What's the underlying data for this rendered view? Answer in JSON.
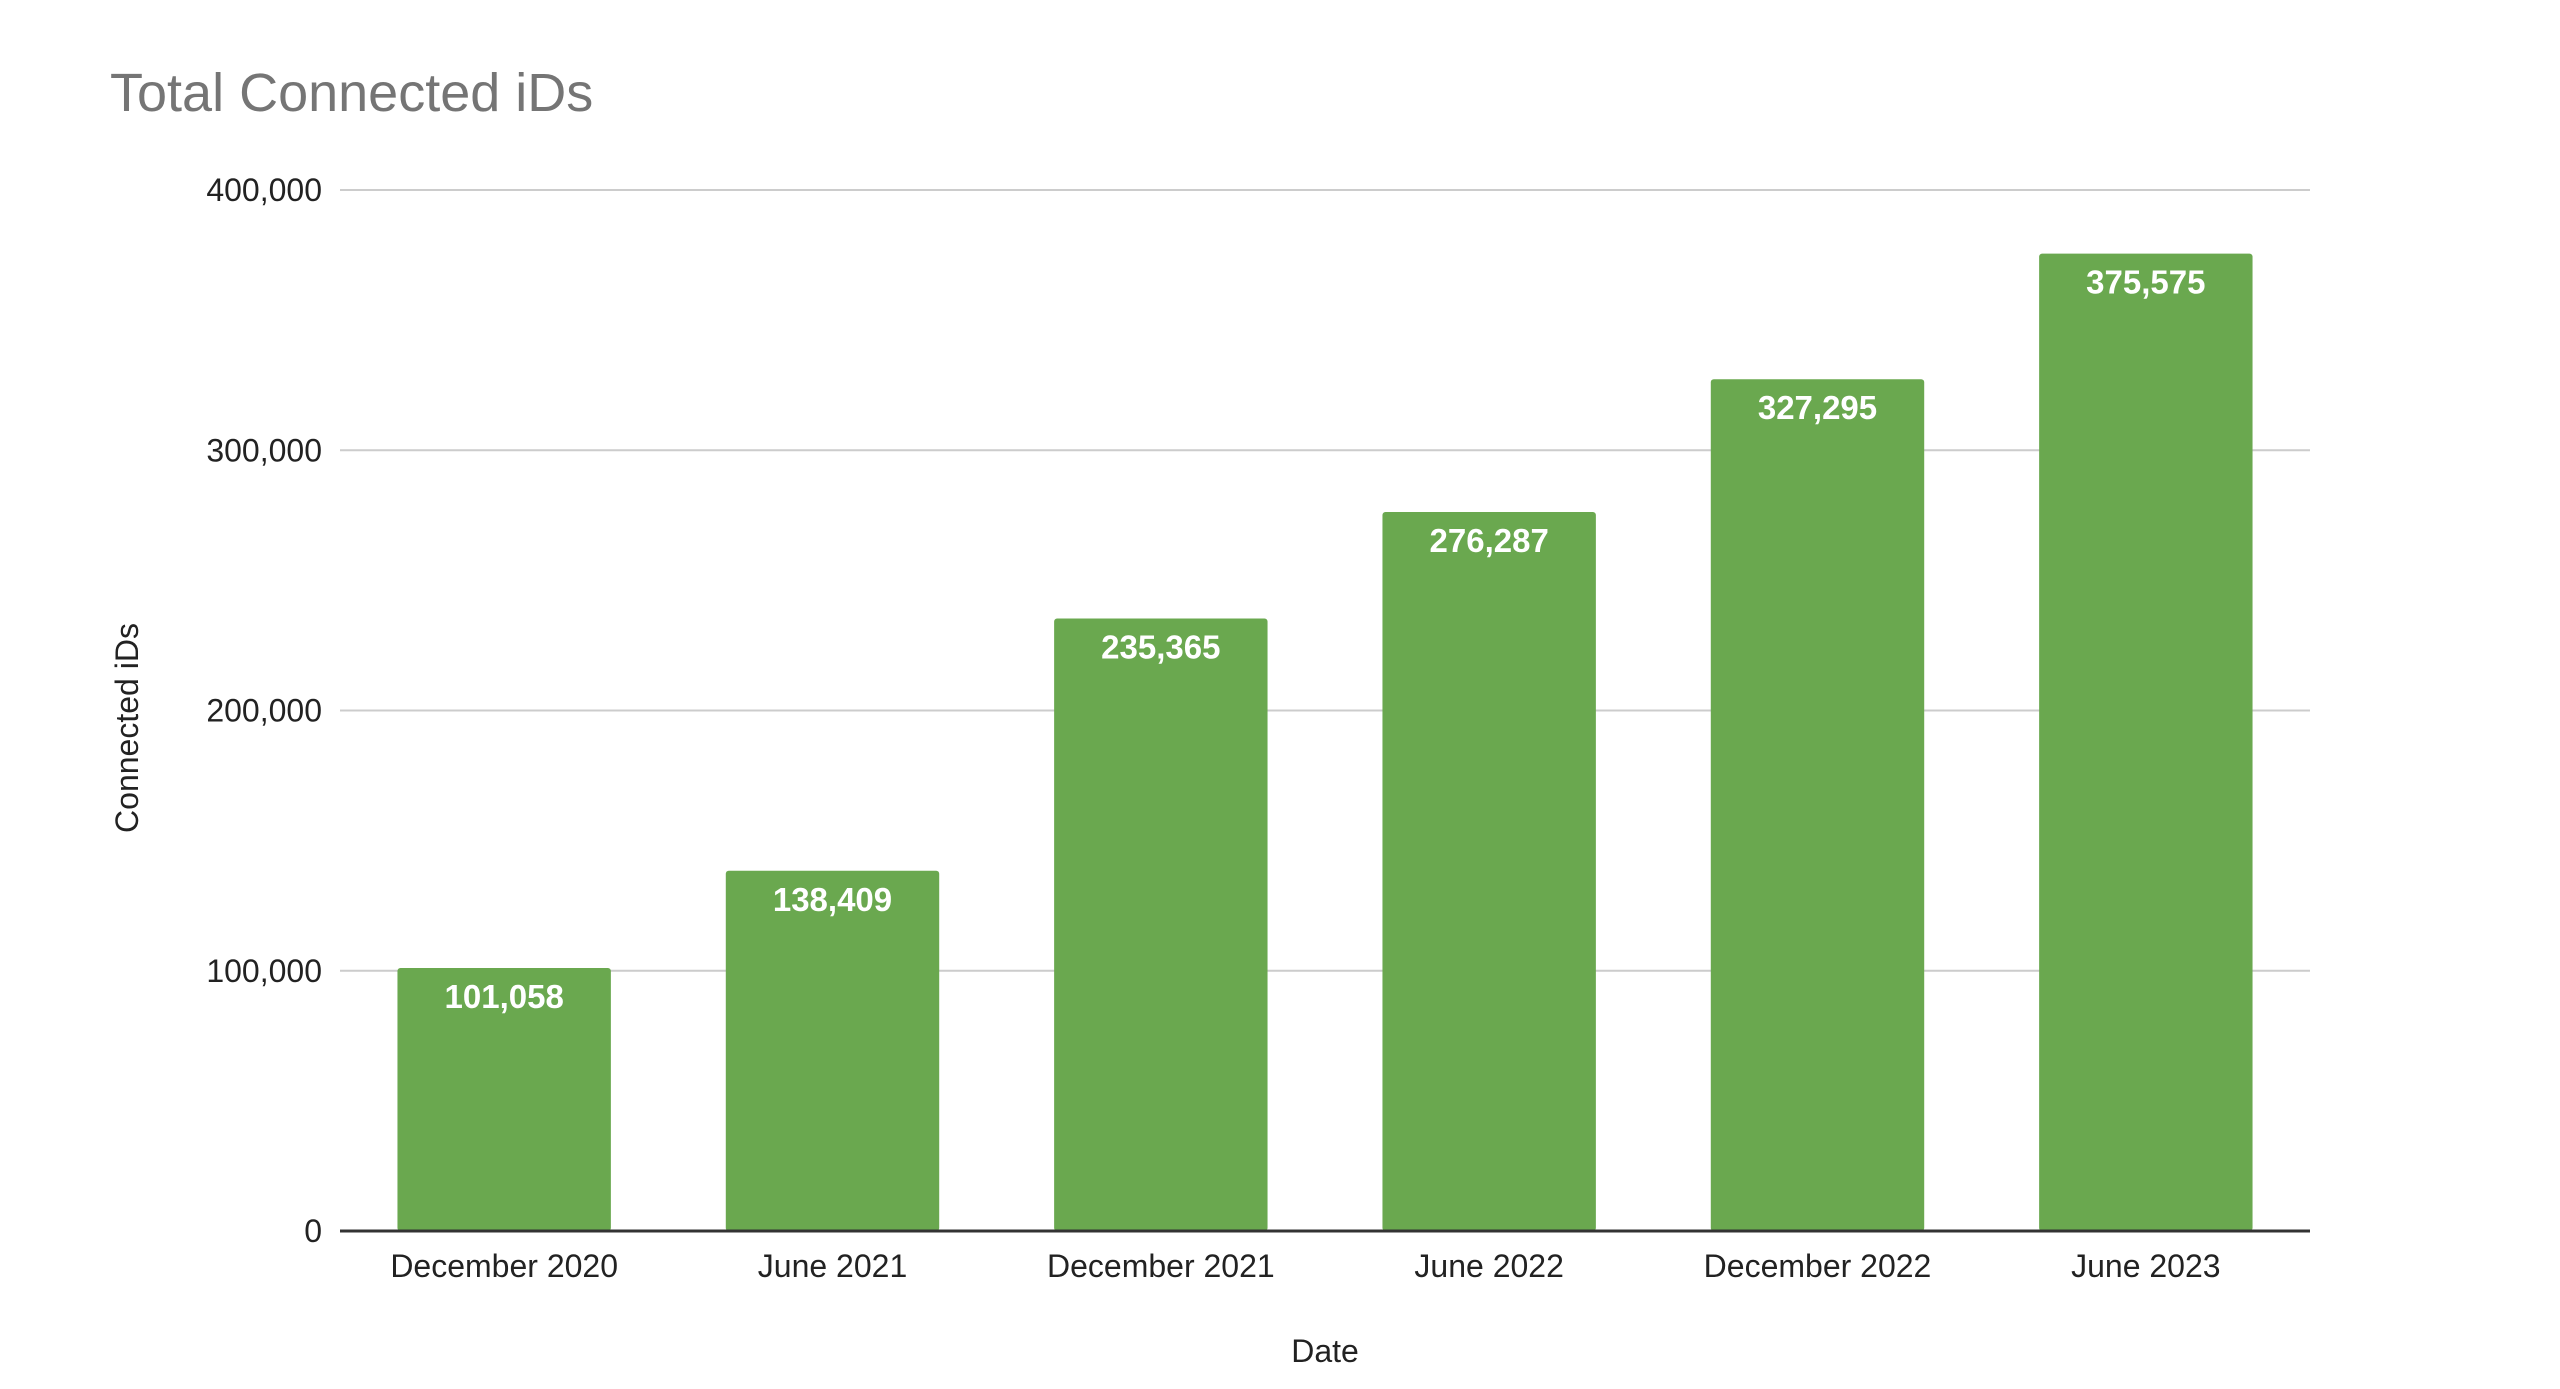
{
  "chart_data": {
    "type": "bar",
    "title": "Total Connected iDs",
    "xlabel": "Date",
    "ylabel": "Connected iDs",
    "categories": [
      "December 2020",
      "June 2021",
      "December 2021",
      "June 2022",
      "December 2022",
      "June 2023"
    ],
    "values": [
      101058,
      138409,
      235365,
      276287,
      327295,
      375575
    ],
    "value_labels": [
      "101,058",
      "138,409",
      "235,365",
      "276,287",
      "327,295",
      "375,575"
    ],
    "ylim": [
      0,
      400000
    ],
    "yticks": [
      0,
      100000,
      200000,
      300000,
      400000
    ],
    "ytick_labels": [
      "0",
      "100,000",
      "200,000",
      "300,000",
      "400,000"
    ],
    "grid": true,
    "legend": "none",
    "colors": {
      "bar": "#6aa84f",
      "grid": "#cccccc",
      "axis": "#333333",
      "title": "#757575",
      "text": "#222222",
      "data_label": "#ffffff"
    }
  }
}
